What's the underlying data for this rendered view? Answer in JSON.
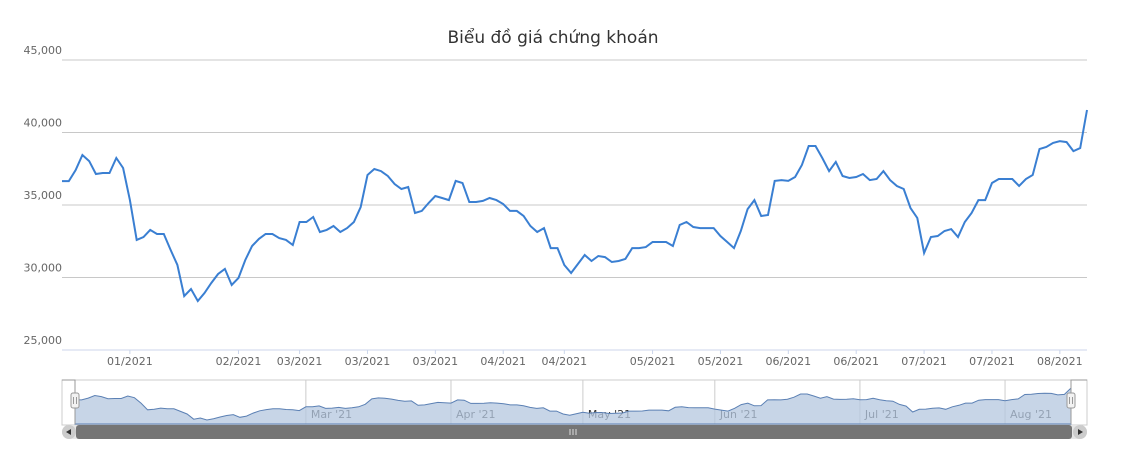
{
  "chart_data": {
    "type": "line",
    "title": "Biểu đồ giá chứng khoán",
    "series": [
      {
        "color": "#3a7fd2",
        "values": [
          36650,
          36650,
          37410,
          38450,
          38030,
          37140,
          37210,
          37210,
          38240,
          37550,
          35340,
          32590,
          32790,
          33280,
          33000,
          33000,
          31900,
          30860,
          28720,
          29210,
          28380,
          28930,
          29620,
          30240,
          30590,
          29480,
          29970,
          31210,
          32170,
          32660,
          33000,
          33000,
          32720,
          32590,
          32240,
          33830,
          33830,
          34170,
          33140,
          33280,
          33550,
          33140,
          33410,
          33830,
          34860,
          37070,
          37480,
          37340,
          37000,
          36450,
          36100,
          36240,
          34450,
          34590,
          35140,
          35620,
          35480,
          35340,
          36660,
          36520,
          35210,
          35210,
          35280,
          35480,
          35340,
          35070,
          34590,
          34590,
          34240,
          33550,
          33140,
          33410,
          32030,
          32030,
          30860,
          30310,
          30930,
          31550,
          31140,
          31480,
          31410,
          31070,
          31140,
          31280,
          32030,
          32030,
          32100,
          32450,
          32450,
          32450,
          32170,
          33620,
          33830,
          33480,
          33410,
          33410,
          33410,
          32860,
          32450,
          32030,
          33210,
          34720,
          35340,
          34240,
          34310,
          36660,
          36720,
          36660,
          36930,
          37760,
          39070,
          39070,
          38240,
          37340,
          37970,
          37000,
          36860,
          36930,
          37140,
          36720,
          36790,
          37340,
          36720,
          36310,
          36100,
          34790,
          34100,
          31690,
          32790,
          32860,
          33210,
          33340,
          32790,
          33830,
          34450,
          35340,
          35340,
          36520,
          36790,
          36790,
          36790,
          36310,
          36790,
          37070,
          38860,
          39000,
          39280,
          39410,
          39340,
          38720,
          38930,
          41550
        ]
      }
    ],
    "ylim": [
      25000,
      45000
    ],
    "yticks": [
      {
        "value": 25000,
        "label": "25,000"
      },
      {
        "value": 30000,
        "label": "30,000"
      },
      {
        "value": 35000,
        "label": "35,000"
      },
      {
        "value": 40000,
        "label": "40,000"
      },
      {
        "value": 45000,
        "label": "45,000"
      }
    ],
    "xticks": [
      {
        "value": 10,
        "label": "01/2021"
      },
      {
        "value": 26,
        "label": "02/2021"
      },
      {
        "value": 35,
        "label": "03/2021"
      },
      {
        "value": 45,
        "label": "03/2021"
      },
      {
        "value": 55,
        "label": "03/2021"
      },
      {
        "value": 65,
        "label": "04/2021"
      },
      {
        "value": 74,
        "label": "04/2021"
      },
      {
        "value": 87,
        "label": "05/2021"
      },
      {
        "value": 97,
        "label": "05/2021"
      },
      {
        "value": 107,
        "label": "06/2021"
      },
      {
        "value": 117,
        "label": "06/2021"
      },
      {
        "value": 127,
        "label": "07/2021"
      },
      {
        "value": 137,
        "label": "07/2021"
      },
      {
        "value": 147,
        "label": "08/2021"
      }
    ],
    "grid": true,
    "navigator": {
      "color": "#b4c7df",
      "line_color": "#5b80b4",
      "xticks": [
        {
          "value": 35,
          "label": "Mar '21"
        },
        {
          "value": 57,
          "label": "Apr '21"
        },
        {
          "value": 77,
          "label": "May '21"
        },
        {
          "value": 97,
          "label": "Jun '21"
        },
        {
          "value": 119,
          "label": "Jul '21"
        },
        {
          "value": 141,
          "label": "Aug '21"
        }
      ]
    }
  }
}
